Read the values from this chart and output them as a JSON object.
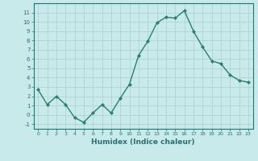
{
  "x": [
    0,
    1,
    2,
    3,
    4,
    5,
    6,
    7,
    8,
    9,
    10,
    11,
    12,
    13,
    14,
    15,
    16,
    17,
    18,
    19,
    20,
    21,
    22,
    23
  ],
  "y": [
    2.7,
    1.1,
    2.0,
    1.1,
    -0.3,
    -0.8,
    0.2,
    1.1,
    0.2,
    1.8,
    3.3,
    6.4,
    7.9,
    9.9,
    10.5,
    10.4,
    11.2,
    9.0,
    7.3,
    5.8,
    5.5,
    4.3,
    3.7,
    3.5
  ],
  "line_color": "#2e7d6e",
  "marker": "D",
  "marker_size": 2.0,
  "xlabel": "Humidex (Indice chaleur)",
  "ylim": [
    -1.5,
    12.0
  ],
  "xlim": [
    -0.5,
    23.5
  ],
  "yticks": [
    -1,
    0,
    1,
    2,
    3,
    4,
    5,
    6,
    7,
    8,
    9,
    10,
    11
  ],
  "xticks": [
    0,
    1,
    2,
    3,
    4,
    5,
    6,
    7,
    8,
    9,
    10,
    11,
    12,
    13,
    14,
    15,
    16,
    17,
    18,
    19,
    20,
    21,
    22,
    23
  ],
  "bg_color": "#c8eaea",
  "grid_color": "#b0d4d4",
  "tick_color": "#2e6e6e",
  "line_width": 1.0
}
